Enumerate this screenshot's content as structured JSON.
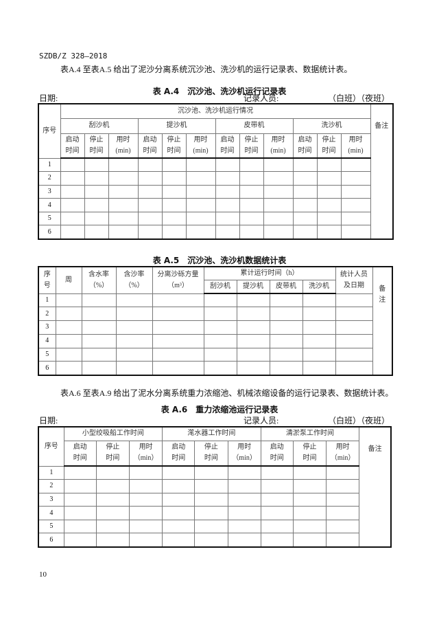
{
  "doc_id": "SZDB/Z 328—2018",
  "intro_a4_a5": "表A.4 至表A.5 给出了泥沙分离系统沉沙池、洗沙机的运行记录表、数据统计表。",
  "intro_a6_a9": "表A.6 至表A.9 给出了泥水分离系统重力浓缩池、机械浓缩设备的运行记录表、数据统计表。",
  "page_number": "10",
  "table_a4": {
    "caption": "表 A.4　沉沙池、洗沙机运行记录表",
    "date_label": "日期:",
    "recorder_label": "记录人员:",
    "shift_label": "（白班）（夜班）",
    "col_seq": "序号",
    "group_title": "沉沙池、洗沙机运行情况",
    "machines": [
      "刮沙机",
      "提沙机",
      "皮带机",
      "洗沙机"
    ],
    "sub": [
      [
        "启动",
        "时间"
      ],
      [
        "停止",
        "时间"
      ],
      [
        "用时",
        "(min)"
      ]
    ],
    "col_remark": "备注",
    "rows": [
      "1",
      "2",
      "3",
      "4",
      "5",
      "6"
    ]
  },
  "table_a5": {
    "caption": "表 A.5　沉沙池、洗沙机数据统计表",
    "col_seq": [
      "序",
      "号"
    ],
    "col_week": "周",
    "col_water": [
      "含水率",
      "（%）"
    ],
    "col_sand": [
      "含沙率",
      "（%）"
    ],
    "col_volume": [
      "分离沙砾方量",
      "（m³）"
    ],
    "runtime_title": "累计运行时间（h）",
    "machines": [
      "刮沙机",
      "提沙机",
      "皮带机",
      "洗沙机"
    ],
    "col_stat": [
      "统计人员",
      "及日期"
    ],
    "col_remark": [
      "备",
      "注"
    ],
    "rows": [
      "1",
      "2",
      "3",
      "4",
      "5",
      "6"
    ]
  },
  "table_a6": {
    "caption": "表 A.6　重力浓缩池运行记录表",
    "date_label": "日期:",
    "recorder_label": "记录人员:",
    "shift_label": "（白班）（夜班）",
    "col_seq": "序号",
    "groups": [
      "小型绞吸船工作时间",
      "滗水器工作时间",
      "清淤泵工作时间"
    ],
    "sub": [
      [
        "启动",
        "时间"
      ],
      [
        "停止",
        "时间"
      ],
      [
        "用时",
        "（min）"
      ]
    ],
    "col_remark": "备注",
    "rows": [
      "1",
      "2",
      "3",
      "4",
      "5",
      "6"
    ]
  }
}
